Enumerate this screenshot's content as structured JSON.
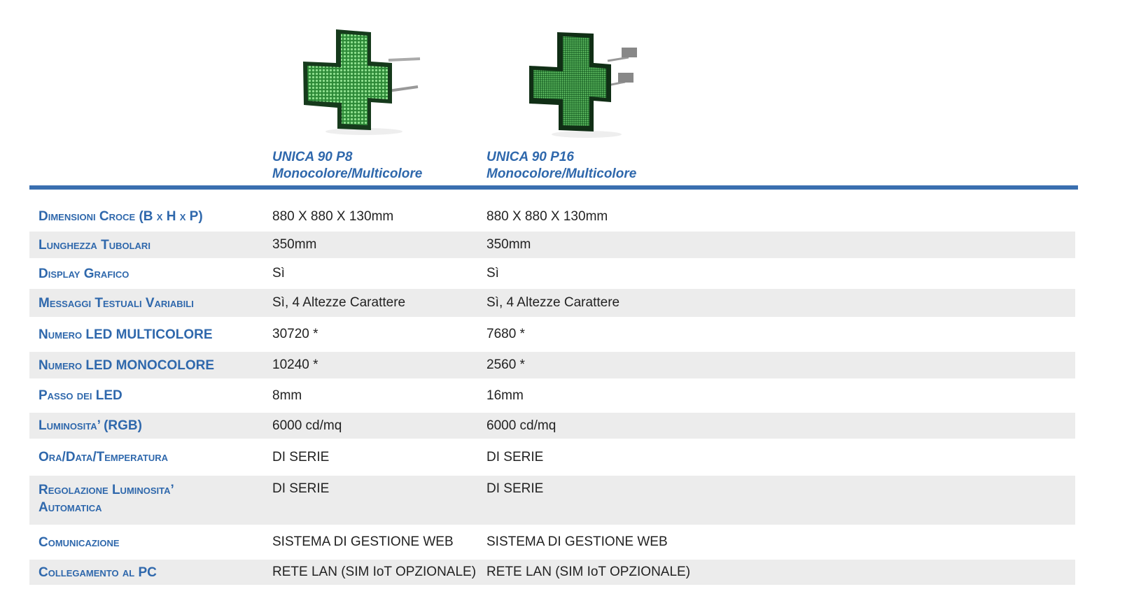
{
  "products": [
    {
      "name": "UNICA 90 P8",
      "subtitle": "Monocolore/Multicolore",
      "image": "green-led-pharmacy-cross-p8"
    },
    {
      "name": "UNICA 90 P16",
      "subtitle": "Monocolore/Multicolore",
      "image": "green-led-pharmacy-cross-p16"
    }
  ],
  "colors": {
    "accent": "#3a6fb0",
    "label": "#2f68ac",
    "row_alt": "#ececec",
    "led_green": "#3fb24a"
  },
  "rows": [
    {
      "label": "Dimensioni Croce (B x H x P)",
      "values": [
        "880 X 880 X 130mm",
        "880 X 880 X 130mm"
      ]
    },
    {
      "label": "Lunghezza Tubolari",
      "values": [
        "350mm",
        "350mm"
      ]
    },
    {
      "label": "Display Grafico",
      "values": [
        "Sì",
        "Sì"
      ]
    },
    {
      "label": "Messaggi Testuali Variabili",
      "values": [
        "Sì, 4 Altezze Carattere",
        "Sì, 4 Altezze Carattere"
      ]
    },
    {
      "label": "Numero LED MULTICOLORE",
      "values": [
        "30720 *",
        "7680 *"
      ]
    },
    {
      "label": "Numero LED MONOCOLORE",
      "values": [
        "10240 *",
        "2560 *"
      ]
    },
    {
      "label": "Passo dei LED",
      "values": [
        "8mm",
        "16mm"
      ]
    },
    {
      "label": "Luminosita’ (RGB)",
      "values": [
        "6000 cd/mq",
        "6000 cd/mq"
      ]
    },
    {
      "label": "Ora/Data/Temperatura",
      "values": [
        "DI SERIE",
        "DI SERIE"
      ]
    },
    {
      "label": "Regolazione Luminosita’ Automatica",
      "values": [
        "DI SERIE",
        "DI SERIE"
      ]
    },
    {
      "label": "Comunicazione",
      "values": [
        "SISTEMA DI GESTIONE WEB",
        "SISTEMA DI GESTIONE WEB"
      ]
    },
    {
      "label": "Collegamento al PC",
      "values": [
        "RETE LAN (SIM IoT OPZIONALE)",
        "RETE LAN (SIM IoT OPZIONALE)"
      ]
    }
  ]
}
